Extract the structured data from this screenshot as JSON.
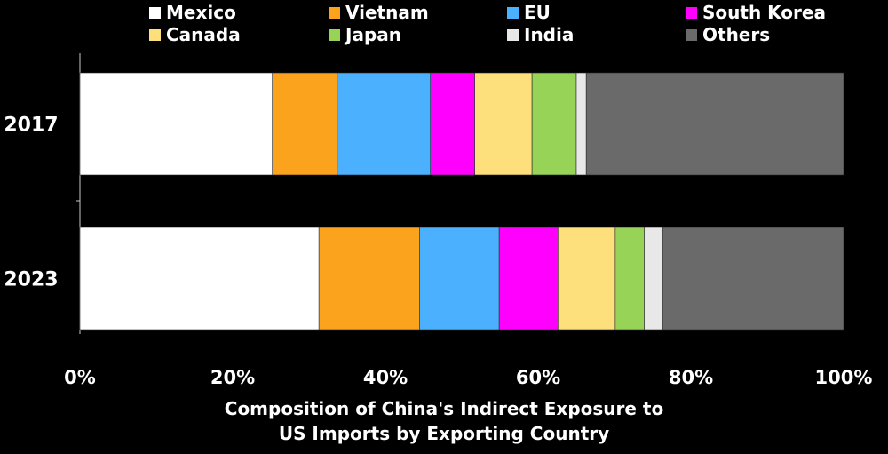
{
  "chart_data": {
    "type": "bar",
    "orientation": "horizontal",
    "stacked": true,
    "categories": [
      "2017",
      "2023"
    ],
    "series": [
      {
        "name": "Mexico",
        "color": "#ffffff",
        "values": [
          25.2,
          31.3
        ]
      },
      {
        "name": "Vietnam",
        "color": "#fba31d",
        "values": [
          8.5,
          13.2
        ]
      },
      {
        "name": "EU",
        "color": "#4bb0fe",
        "values": [
          12.2,
          10.4
        ]
      },
      {
        "name": "South Korea",
        "color": "#ff00ff",
        "values": [
          5.8,
          7.7
        ]
      },
      {
        "name": "Canada",
        "color": "#fddf7b",
        "values": [
          7.5,
          7.5
        ]
      },
      {
        "name": "Japan",
        "color": "#96d356",
        "values": [
          5.8,
          3.8
        ]
      },
      {
        "name": "India",
        "color": "#e8e8e8",
        "values": [
          1.3,
          2.4
        ]
      },
      {
        "name": "Others",
        "color": "#6a6a6a",
        "values": [
          33.7,
          23.7
        ]
      }
    ],
    "x_ticks": [
      "0%",
      "20%",
      "40%",
      "60%",
      "80%",
      "100%"
    ],
    "xlim": [
      0,
      100
    ],
    "xlabel_lines": [
      "Composition of China's Indirect Exposure to",
      "US Imports by Exporting Country"
    ],
    "legend": "top",
    "grid": false
  }
}
